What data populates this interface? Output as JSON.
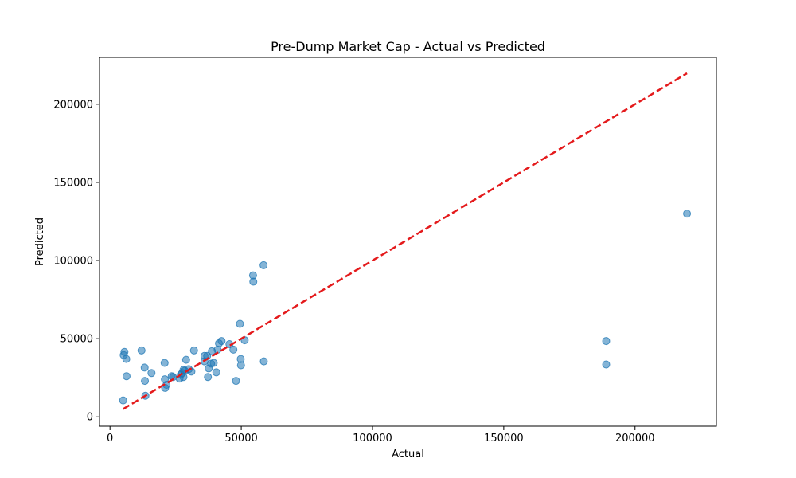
{
  "chart_data": {
    "type": "scatter",
    "title": "Pre-Dump Market Cap - Actual vs Predicted",
    "xlabel": "Actual",
    "ylabel": "Predicted",
    "xlim": [
      -4000,
      231000
    ],
    "ylim": [
      -6000,
      230000
    ],
    "xticks": [
      0,
      50000,
      100000,
      150000,
      200000
    ],
    "xtick_labels": [
      "0",
      "50000",
      "100000",
      "150000",
      "200000"
    ],
    "yticks": [
      0,
      50000,
      100000,
      150000,
      200000
    ],
    "ytick_labels": [
      "0",
      "50000",
      "100000",
      "150000",
      "200000"
    ],
    "grid": false,
    "legend": "none",
    "series": [
      {
        "marker": "circle",
        "color": "#1f77b4",
        "points": [
          [
            5000,
            10500
          ],
          [
            5200,
            39500
          ],
          [
            5500,
            41500
          ],
          [
            6200,
            37000
          ],
          [
            6300,
            26000
          ],
          [
            12000,
            42500
          ],
          [
            13200,
            31500
          ],
          [
            13300,
            23000
          ],
          [
            13500,
            13500
          ],
          [
            15800,
            28000
          ],
          [
            20800,
            34500
          ],
          [
            20900,
            24000
          ],
          [
            21000,
            18500
          ],
          [
            21500,
            20500
          ],
          [
            23500,
            26000
          ],
          [
            24000,
            25500
          ],
          [
            26500,
            24500
          ],
          [
            27000,
            27000
          ],
          [
            27500,
            28000
          ],
          [
            28000,
            30000
          ],
          [
            28000,
            25500
          ],
          [
            28500,
            29500
          ],
          [
            29000,
            36500
          ],
          [
            30000,
            30500
          ],
          [
            31000,
            29000
          ],
          [
            32000,
            42500
          ],
          [
            36000,
            35500
          ],
          [
            36000,
            39000
          ],
          [
            37000,
            39000
          ],
          [
            37300,
            25500
          ],
          [
            37600,
            31000
          ],
          [
            38500,
            34000
          ],
          [
            38800,
            42000
          ],
          [
            39500,
            34500
          ],
          [
            40500,
            28500
          ],
          [
            41000,
            43000
          ],
          [
            41500,
            47000
          ],
          [
            42500,
            48500
          ],
          [
            45500,
            46500
          ],
          [
            47000,
            43000
          ],
          [
            48000,
            23000
          ],
          [
            49500,
            59500
          ],
          [
            49800,
            37000
          ],
          [
            49900,
            33000
          ],
          [
            51300,
            49000
          ],
          [
            54500,
            90500
          ],
          [
            54600,
            86500
          ],
          [
            58500,
            97000
          ],
          [
            58600,
            35500
          ],
          [
            189000,
            48500
          ],
          [
            189000,
            33500
          ],
          [
            219800,
            130000
          ]
        ]
      }
    ],
    "reference_line": {
      "style": "dashed",
      "color": "#e41a1c",
      "x": [
        5000,
        219800
      ],
      "y": [
        5000,
        219800
      ]
    }
  }
}
